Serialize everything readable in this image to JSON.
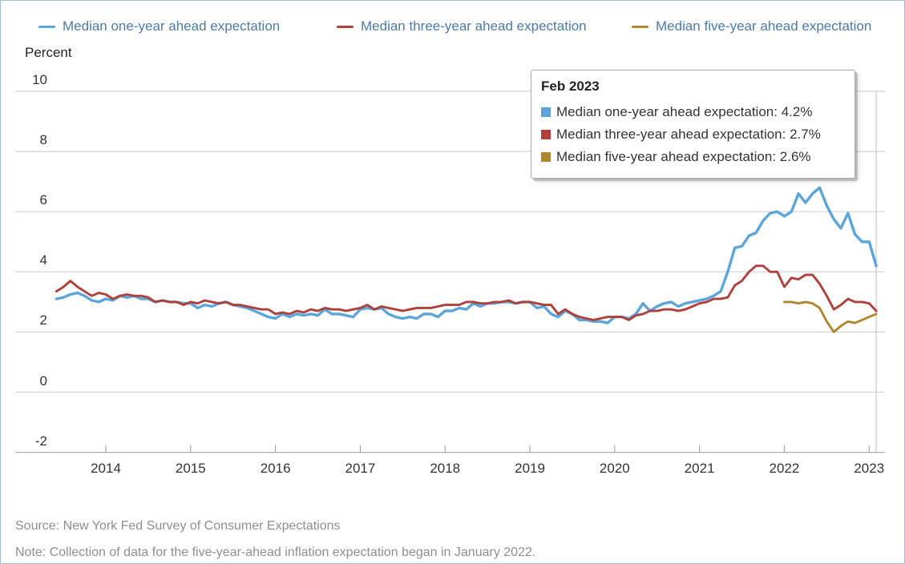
{
  "axis_title": "Percent",
  "legend": {
    "items": [
      {
        "label": "Median one-year ahead expectation"
      },
      {
        "label": "Median three-year ahead expectation"
      },
      {
        "label": "Median five-year ahead expectation"
      }
    ]
  },
  "tooltip": {
    "title": "Feb 2023",
    "rows": [
      {
        "text": "Median one-year ahead expectation: 4.2%",
        "value": "4.2%"
      },
      {
        "text": "Median three-year ahead expectation: 2.7%",
        "value": "2.7%"
      },
      {
        "text": "Median five-year ahead expectation: 2.6%",
        "value": "2.6%"
      }
    ]
  },
  "footer": {
    "source": "Source: New York Fed Survey of Consumer Expectations",
    "note": "Note: Collection of data for the five-year-ahead inflation expectation began in January 2022."
  },
  "colors": {
    "grid": "#d2d2d2",
    "axis": "#ababab",
    "tick": "#999999",
    "crosshair": "#c8c8c8",
    "legend_text": "#4e7aa4"
  },
  "chart_data": {
    "type": "line",
    "title": "",
    "ylabel": "Percent",
    "ylim": [
      -2,
      10
    ],
    "yticks": [
      10,
      8,
      6,
      4,
      2,
      0,
      -2
    ],
    "x_frequency": "monthly",
    "x_start": "2013-06",
    "x_end": "2023-02",
    "x_tick_labels": [
      "2014",
      "2015",
      "2016",
      "2017",
      "2018",
      "2019",
      "2020",
      "2021",
      "2022",
      "2023"
    ],
    "grid": true,
    "legend_position": "top",
    "hovered_point": {
      "x": "Feb 2023",
      "values": [
        4.2,
        2.7,
        2.6
      ]
    },
    "series": [
      {
        "name": "Median one-year ahead expectation",
        "color": "#5ca5db",
        "start_index": 0,
        "values": [
          3.1,
          3.15,
          3.25,
          3.3,
          3.2,
          3.05,
          3.0,
          3.1,
          3.05,
          3.2,
          3.15,
          3.2,
          3.1,
          3.1,
          3.0,
          3.05,
          3.0,
          3.0,
          2.95,
          2.95,
          2.8,
          2.9,
          2.85,
          2.95,
          3.0,
          2.9,
          2.85,
          2.8,
          2.7,
          2.6,
          2.5,
          2.45,
          2.6,
          2.5,
          2.6,
          2.55,
          2.6,
          2.55,
          2.75,
          2.6,
          2.6,
          2.55,
          2.5,
          2.75,
          2.8,
          2.75,
          2.8,
          2.6,
          2.5,
          2.45,
          2.5,
          2.45,
          2.6,
          2.6,
          2.5,
          2.7,
          2.7,
          2.8,
          2.75,
          2.95,
          2.85,
          2.95,
          2.95,
          3.0,
          3.0,
          2.95,
          3.0,
          3.0,
          2.8,
          2.85,
          2.6,
          2.5,
          2.7,
          2.6,
          2.4,
          2.4,
          2.35,
          2.35,
          2.3,
          2.5,
          2.5,
          2.45,
          2.6,
          2.95,
          2.7,
          2.85,
          2.95,
          3.0,
          2.85,
          2.95,
          3.0,
          3.05,
          3.1,
          3.2,
          3.35,
          4.0,
          4.8,
          4.85,
          5.2,
          5.3,
          5.7,
          5.95,
          6.0,
          5.85,
          6.0,
          6.6,
          6.3,
          6.6,
          6.8,
          6.2,
          5.75,
          5.45,
          5.95,
          5.25,
          5.0,
          5.0,
          4.2
        ]
      },
      {
        "name": "Median three-year ahead expectation",
        "color": "#af403c",
        "start_index": 0,
        "values": [
          3.35,
          3.5,
          3.7,
          3.5,
          3.35,
          3.2,
          3.3,
          3.25,
          3.1,
          3.2,
          3.25,
          3.2,
          3.2,
          3.15,
          3.0,
          3.05,
          3.0,
          3.0,
          2.9,
          3.0,
          2.95,
          3.05,
          3.0,
          2.95,
          3.0,
          2.9,
          2.9,
          2.85,
          2.8,
          2.75,
          2.75,
          2.6,
          2.65,
          2.6,
          2.7,
          2.65,
          2.75,
          2.7,
          2.8,
          2.75,
          2.75,
          2.7,
          2.75,
          2.8,
          2.9,
          2.75,
          2.85,
          2.8,
          2.75,
          2.7,
          2.75,
          2.8,
          2.8,
          2.8,
          2.85,
          2.9,
          2.9,
          2.9,
          3.0,
          3.0,
          2.95,
          2.95,
          3.0,
          3.0,
          3.05,
          2.95,
          3.0,
          3.0,
          2.95,
          2.9,
          2.9,
          2.6,
          2.75,
          2.6,
          2.5,
          2.45,
          2.4,
          2.45,
          2.5,
          2.5,
          2.5,
          2.4,
          2.55,
          2.6,
          2.7,
          2.7,
          2.75,
          2.75,
          2.7,
          2.75,
          2.85,
          2.95,
          3.0,
          3.1,
          3.1,
          3.15,
          3.55,
          3.7,
          4.0,
          4.2,
          4.2,
          4.0,
          4.0,
          3.5,
          3.8,
          3.75,
          3.9,
          3.9,
          3.6,
          3.2,
          2.75,
          2.9,
          3.1,
          3.0,
          3.0,
          2.95,
          2.7
        ]
      },
      {
        "name": "Median five-year ahead expectation",
        "color": "#af872e",
        "start_index": 103,
        "values": [
          3.0,
          3.0,
          2.95,
          3.0,
          2.95,
          2.8,
          2.35,
          2.0,
          2.2,
          2.35,
          2.3,
          2.4,
          2.5,
          2.6
        ]
      }
    ]
  }
}
